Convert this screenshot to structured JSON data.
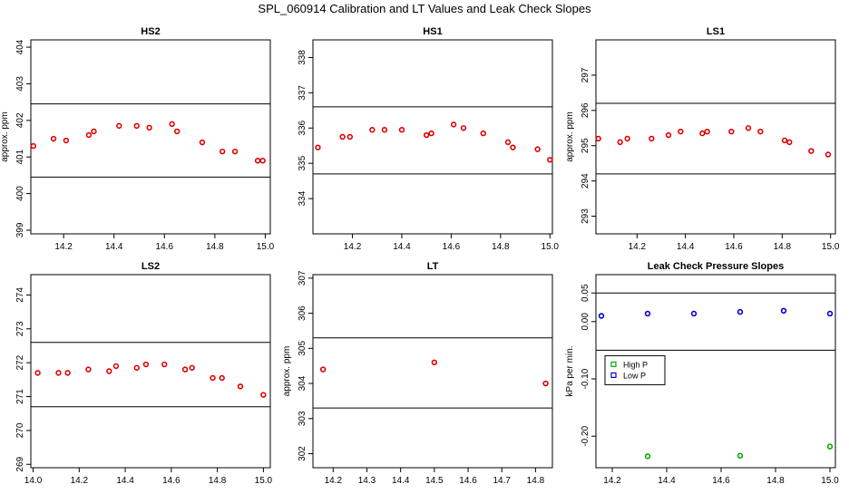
{
  "title": "SPL_060914  Calibration and LT Values and Leak Check Slopes",
  "chart_data": [
    {
      "type": "scatter",
      "title": "HS2",
      "ylabel": "approx. ppm",
      "xlim": [
        14.07,
        15.02
      ],
      "ylim": [
        398.9,
        404.2
      ],
      "xticks": [
        14.2,
        14.4,
        14.6,
        14.8,
        15.0
      ],
      "xtick_labels": [
        "14.2",
        "14.4",
        "14.6",
        "14.8",
        "15.0"
      ],
      "yticks": [
        399,
        400,
        401,
        402,
        403,
        404
      ],
      "ytick_labels": [
        "399",
        "400",
        "401",
        "402",
        "403",
        "404"
      ],
      "hlines": [
        402.45,
        400.45
      ],
      "series": [
        {
          "color": "#dd0000",
          "marker": "circle",
          "x": [
            14.08,
            14.16,
            14.21,
            14.3,
            14.32,
            14.42,
            14.49,
            14.54,
            14.63,
            14.65,
            14.75,
            14.83,
            14.88,
            14.97,
            14.99
          ],
          "y": [
            401.3,
            401.5,
            401.45,
            401.6,
            401.7,
            401.85,
            401.85,
            401.8,
            401.9,
            401.7,
            401.4,
            401.15,
            401.15,
            400.9,
            400.9
          ]
        }
      ]
    },
    {
      "type": "scatter",
      "title": "HS1",
      "ylabel": "",
      "xlim": [
        14.04,
        15.01
      ],
      "ylim": [
        333.0,
        338.5
      ],
      "xticks": [
        14.2,
        14.4,
        14.6,
        14.8,
        15.0
      ],
      "xtick_labels": [
        "14.2",
        "14.4",
        "14.6",
        "14.8",
        "15.0"
      ],
      "yticks": [
        334,
        335,
        336,
        337,
        338
      ],
      "ytick_labels": [
        "334",
        "335",
        "336",
        "337",
        "338"
      ],
      "hlines": [
        336.6,
        334.7
      ],
      "series": [
        {
          "color": "#dd0000",
          "marker": "circle",
          "x": [
            14.06,
            14.16,
            14.19,
            14.28,
            14.33,
            14.4,
            14.5,
            14.52,
            14.61,
            14.65,
            14.73,
            14.83,
            14.85,
            14.95,
            15.0
          ],
          "y": [
            335.45,
            335.75,
            335.75,
            335.95,
            335.95,
            335.95,
            335.8,
            335.85,
            336.1,
            336.0,
            335.85,
            335.6,
            335.45,
            335.4,
            335.1
          ]
        }
      ]
    },
    {
      "type": "scatter",
      "title": "LS1",
      "ylabel": "approx. ppm",
      "xlim": [
        14.03,
        15.02
      ],
      "ylim": [
        292.5,
        298.0
      ],
      "xticks": [
        14.2,
        14.4,
        14.6,
        14.8,
        15.0
      ],
      "xtick_labels": [
        "14.2",
        "14.4",
        "14.6",
        "14.8",
        "15.0"
      ],
      "yticks": [
        293,
        294,
        295,
        296,
        297
      ],
      "ytick_labels": [
        "293",
        "294",
        "295",
        "296",
        "297"
      ],
      "hlines": [
        296.2,
        294.2
      ],
      "series": [
        {
          "color": "#dd0000",
          "marker": "circle",
          "x": [
            14.04,
            14.13,
            14.16,
            14.26,
            14.33,
            14.38,
            14.47,
            14.49,
            14.59,
            14.66,
            14.71,
            14.81,
            14.83,
            14.92,
            14.99
          ],
          "y": [
            295.2,
            295.1,
            295.2,
            295.2,
            295.3,
            295.4,
            295.35,
            295.4,
            295.4,
            295.5,
            295.4,
            295.15,
            295.1,
            294.85,
            294.75
          ]
        }
      ]
    },
    {
      "type": "scatter",
      "title": "LS2",
      "ylabel": "",
      "xlim": [
        13.99,
        15.03
      ],
      "ylim": [
        268.9,
        274.6
      ],
      "xticks": [
        14.0,
        14.2,
        14.4,
        14.6,
        14.8,
        15.0
      ],
      "xtick_labels": [
        "14.0",
        "14.2",
        "14.4",
        "14.6",
        "14.8",
        "15.0"
      ],
      "yticks": [
        269,
        270,
        271,
        272,
        273,
        274
      ],
      "ytick_labels": [
        "269",
        "270",
        "271",
        "272",
        "273",
        "274"
      ],
      "hlines": [
        272.6,
        270.7
      ],
      "series": [
        {
          "color": "#dd0000",
          "marker": "circle",
          "x": [
            14.02,
            14.11,
            14.15,
            14.24,
            14.33,
            14.36,
            14.45,
            14.49,
            14.57,
            14.66,
            14.69,
            14.78,
            14.82,
            14.9,
            15.0
          ],
          "y": [
            271.7,
            271.7,
            271.7,
            271.8,
            271.75,
            271.9,
            271.85,
            271.95,
            271.95,
            271.8,
            271.85,
            271.55,
            271.55,
            271.3,
            271.05
          ]
        }
      ]
    },
    {
      "type": "scatter",
      "title": "LT",
      "ylabel": "approx. ppm",
      "xlim": [
        14.14,
        14.85
      ],
      "ylim": [
        301.6,
        307.1
      ],
      "xticks": [
        14.2,
        14.3,
        14.4,
        14.5,
        14.6,
        14.7,
        14.8
      ],
      "xtick_labels": [
        "14.2",
        "14.3",
        "14.4",
        "14.5",
        "14.6",
        "14.7",
        "14.8"
      ],
      "yticks": [
        302,
        303,
        304,
        305,
        306,
        307
      ],
      "ytick_labels": [
        "302",
        "303",
        "304",
        "305",
        "306",
        "307"
      ],
      "hlines": [
        305.3,
        303.3
      ],
      "series": [
        {
          "color": "#dd0000",
          "marker": "circle",
          "x": [
            14.17,
            14.5,
            14.83
          ],
          "y": [
            304.4,
            304.6,
            304.0
          ]
        }
      ]
    },
    {
      "type": "scatter",
      "title": "Leak Check Pressure Slopes",
      "ylabel": "kPa per min.",
      "xlim": [
        14.14,
        15.02
      ],
      "ylim": [
        -0.255,
        0.082
      ],
      "xticks": [
        14.2,
        14.4,
        14.6,
        14.8,
        15.0
      ],
      "xtick_labels": [
        "14.2",
        "14.4",
        "14.6",
        "14.8",
        "15.0"
      ],
      "yticks": [
        -0.2,
        -0.1,
        0.0,
        0.05
      ],
      "ytick_labels": [
        "-0.20",
        "-0.10",
        "0.00",
        "0.05"
      ],
      "hlines": [
        0.05,
        -0.05
      ],
      "legend": "left",
      "series": [
        {
          "name": "High P",
          "color": "#00aa00",
          "marker": "circle",
          "x": [
            14.33,
            14.67,
            15.0
          ],
          "y": [
            -0.235,
            -0.234,
            -0.218
          ]
        },
        {
          "name": "Low P",
          "color": "#0000cc",
          "marker": "circle",
          "x": [
            14.16,
            14.33,
            14.5,
            14.67,
            14.83,
            15.0
          ],
          "y": [
            0.01,
            0.014,
            0.014,
            0.017,
            0.019,
            0.014
          ]
        }
      ]
    }
  ]
}
